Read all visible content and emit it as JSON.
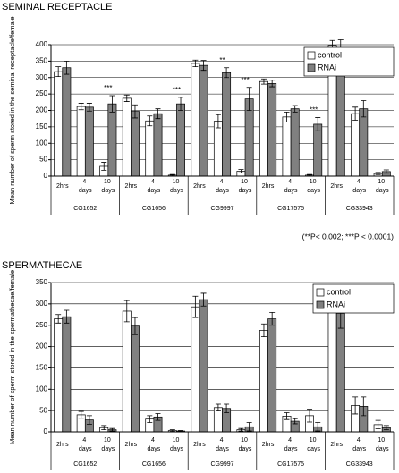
{
  "chart_data": [
    {
      "type": "bar",
      "title": "SEMINAL RECEPTACLE",
      "ylabel": "Mean number of sperm stored in the seminal receptacle/female",
      "categories": [
        "2hrs",
        "4 days",
        "10 days",
        "2hrs",
        "4 days",
        "10 days",
        "2hrs",
        "4 days",
        "10 days",
        "2hrs",
        "4 days",
        "10 days",
        "2hrs",
        "4 days",
        "10 days"
      ],
      "groups": [
        "CG1652",
        "CG1656",
        "CG9997",
        "CG17575",
        "CG33943"
      ],
      "series": [
        {
          "name": "control",
          "color": "#ffffff",
          "values": [
            318,
            212,
            30,
            237,
            168,
            3,
            343,
            167,
            15,
            288,
            180,
            3,
            398,
            190,
            8
          ],
          "errors": [
            15,
            10,
            12,
            10,
            15,
            2,
            10,
            20,
            5,
            8,
            15,
            2,
            15,
            20,
            3
          ]
        },
        {
          "name": "RNAi",
          "color": "#808080",
          "values": [
            330,
            210,
            220,
            197,
            190,
            220,
            337,
            315,
            235,
            282,
            205,
            158,
            390,
            205,
            14
          ],
          "errors": [
            20,
            12,
            25,
            20,
            15,
            20,
            15,
            15,
            35,
            10,
            10,
            20,
            25,
            25,
            5
          ]
        }
      ],
      "significance": [
        null,
        null,
        "***",
        null,
        null,
        "***",
        null,
        "**",
        "***",
        null,
        null,
        "***",
        null,
        null,
        null
      ],
      "note": "(**P< 0.002; ***P < 0.0001)",
      "ylim": [
        0,
        400
      ],
      "yticks": [
        0,
        50,
        100,
        150,
        200,
        250,
        300,
        350,
        400
      ],
      "grid": true,
      "legend": "top-right"
    },
    {
      "type": "bar",
      "title": "SPERMATHECAE",
      "ylabel": "Mean number of sperm stored in the spermathecae/female",
      "categories": [
        "2hrs",
        "4 days",
        "10 days",
        "2hrs",
        "4 days",
        "10 days",
        "2hrs",
        "4 days",
        "10 days",
        "2hrs",
        "4 days",
        "10 days",
        "2hrs",
        "4 days",
        "10 days"
      ],
      "groups": [
        "CG1652",
        "CG1656",
        "CG9997",
        "CG17575",
        "CG33943"
      ],
      "series": [
        {
          "name": "control",
          "color": "#ffffff",
          "values": [
            265,
            40,
            10,
            283,
            30,
            3,
            293,
            57,
            5,
            238,
            37,
            38,
            305,
            62,
            17
          ],
          "errors": [
            10,
            8,
            5,
            25,
            8,
            2,
            25,
            8,
            3,
            15,
            8,
            15,
            15,
            20,
            10
          ]
        },
        {
          "name": "RNAi",
          "color": "#808080",
          "values": [
            270,
            28,
            5,
            248,
            35,
            2,
            310,
            55,
            12,
            265,
            25,
            12,
            278,
            60,
            10
          ],
          "errors": [
            15,
            10,
            3,
            20,
            8,
            1,
            15,
            10,
            10,
            15,
            6,
            10,
            35,
            22,
            5
          ]
        }
      ],
      "ylim": [
        0,
        350
      ],
      "yticks": [
        0,
        50,
        100,
        150,
        200,
        250,
        300,
        350
      ],
      "grid": true,
      "legend": "top-right"
    }
  ]
}
